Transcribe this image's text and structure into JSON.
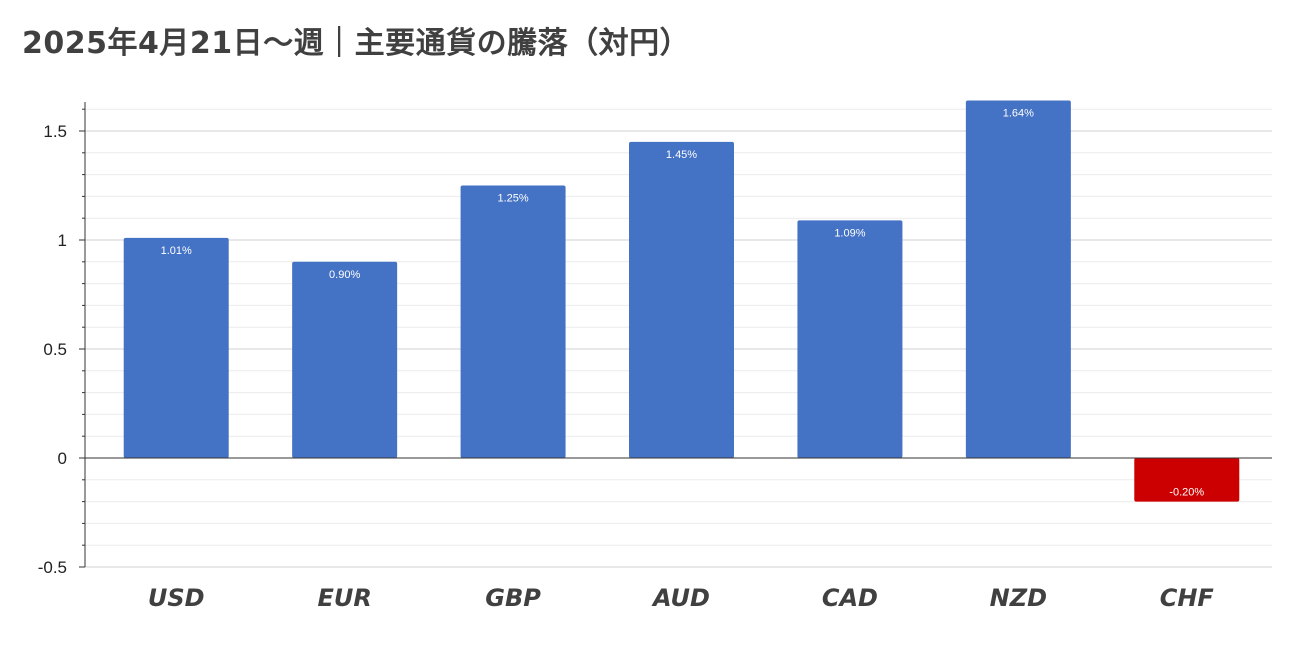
{
  "chart_data": {
    "type": "bar",
    "title": "2025年4月21日～週｜主要通貨の騰落（対円）",
    "xlabel": "",
    "ylabel": "",
    "categories": [
      "USD",
      "EUR",
      "GBP",
      "AUD",
      "CAD",
      "NZD",
      "CHF"
    ],
    "values": [
      1.01,
      0.9,
      1.25,
      1.45,
      1.09,
      1.64,
      -0.2
    ],
    "data_labels": [
      "1.01%",
      "0.90%",
      "1.25%",
      "1.45%",
      "1.09%",
      "1.64%",
      "-0.20%"
    ],
    "ylim": [
      -0.5,
      1.65
    ],
    "yticks": [
      -0.5,
      0,
      0.5,
      1,
      1.5
    ],
    "ytick_labels": [
      "-0.5",
      "0",
      "0.5",
      "1",
      "1.5"
    ],
    "grid": true,
    "legend": "none",
    "colors": {
      "positive": "#4472c4",
      "negative": "#cc0000",
      "grid_major": "#d0d0d0",
      "grid_minor": "#ececec",
      "axis": "#333333"
    }
  }
}
